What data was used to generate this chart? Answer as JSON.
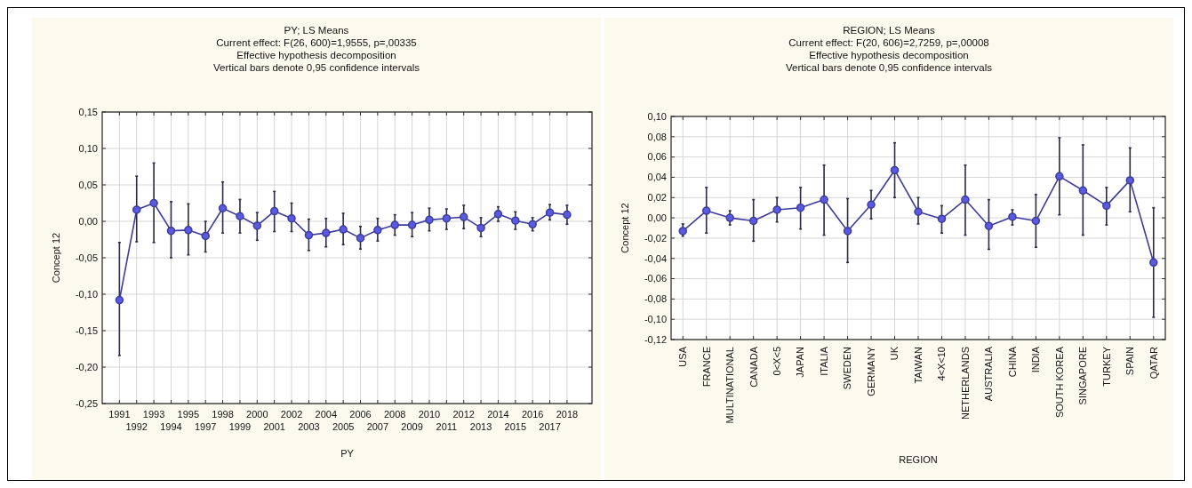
{
  "chart_data": [
    {
      "type": "line",
      "title": "PY; LS Means",
      "subtitle": "Current effect: F(26, 600)=1,9555, p=,00335",
      "annotations": [
        "Effective hypothesis decomposition",
        "Vertical bars denote 0,95 confidence intervals"
      ],
      "xlabel": "PY",
      "ylabel": "Concept 12",
      "categories": [
        "1991",
        "1992",
        "1993",
        "1994",
        "1995",
        "1997",
        "1998",
        "1999",
        "2000",
        "2001",
        "2002",
        "2003",
        "2004",
        "2005",
        "2006",
        "2007",
        "2008",
        "2009",
        "2010",
        "2011",
        "2012",
        "2013",
        "2014",
        "2015",
        "2016",
        "2017",
        "2018"
      ],
      "series": [
        {
          "color": "#3c3c9c",
          "values": [
            -0.108,
            0.016,
            0.025,
            -0.013,
            -0.012,
            -0.02,
            0.018,
            0.007,
            -0.006,
            0.014,
            0.004,
            -0.019,
            -0.016,
            -0.011,
            -0.023,
            -0.012,
            -0.005,
            -0.005,
            0.002,
            0.004,
            0.006,
            -0.009,
            0.01,
            0.001,
            -0.004,
            0.012,
            0.009
          ],
          "errors": [
            [
              -0.184,
              -0.029
            ],
            [
              -0.028,
              0.062
            ],
            [
              -0.029,
              0.08
            ],
            [
              -0.05,
              0.027
            ],
            [
              -0.046,
              0.024
            ],
            [
              -0.042,
              0.0
            ],
            [
              -0.016,
              0.054
            ],
            [
              -0.016,
              0.03
            ],
            [
              -0.026,
              0.012
            ],
            [
              -0.014,
              0.041
            ],
            [
              -0.014,
              0.025
            ],
            [
              -0.04,
              0.003
            ],
            [
              -0.035,
              0.004
            ],
            [
              -0.032,
              0.011
            ],
            [
              -0.038,
              -0.007
            ],
            [
              -0.027,
              0.004
            ],
            [
              -0.019,
              0.009
            ],
            [
              -0.021,
              0.012
            ],
            [
              -0.013,
              0.018
            ],
            [
              -0.011,
              0.017
            ],
            [
              -0.01,
              0.022
            ],
            [
              -0.021,
              0.005
            ],
            [
              0.0,
              0.02
            ],
            [
              -0.011,
              0.013
            ],
            [
              -0.013,
              0.005
            ],
            [
              0.002,
              0.023
            ],
            [
              -0.004,
              0.022
            ]
          ]
        }
      ],
      "ylim": [
        -0.25,
        0.15
      ],
      "yticks": [
        {
          "value": -0.25,
          "label": "-0,25"
        },
        {
          "value": -0.2,
          "label": "-0,20"
        },
        {
          "value": -0.15,
          "label": "-0,15"
        },
        {
          "value": -0.1,
          "label": "-0,10"
        },
        {
          "value": -0.05,
          "label": "-0,05"
        },
        {
          "value": 0,
          "label": "0,00"
        },
        {
          "value": 0.05,
          "label": "0,05"
        },
        {
          "value": 0.1,
          "label": "0,10"
        },
        {
          "value": 0.15,
          "label": "0,15"
        }
      ],
      "grid": true,
      "marker": "circle",
      "line_style": "solid"
    },
    {
      "type": "line",
      "title": "REGION; LS Means",
      "subtitle": "Current effect: F(20, 606)=2,7259, p=,00008",
      "annotations": [
        "Effective hypothesis decomposition",
        "Vertical bars denote 0,95 confidence intervals"
      ],
      "xlabel": "REGION",
      "ylabel": "Concept 12",
      "categories": [
        "USA",
        "FRANCE",
        "MULTINATIONAL",
        "CANADA",
        "0<X<5",
        "JAPAN",
        "ITALIA",
        "SWEDEN",
        "GERMANY",
        "UK",
        "TAIWAN",
        "4<X<10",
        "NETHERLANDS",
        "AUSTRALIA",
        "CHINA",
        "INDIA",
        "SOUTH KOREA",
        "SINGAPORE",
        "TURKEY",
        "SPAIN",
        "QATAR"
      ],
      "series": [
        {
          "color": "#3c3c9c",
          "values": [
            -0.013,
            0.007,
            0.0,
            -0.003,
            0.008,
            0.01,
            0.018,
            -0.013,
            0.013,
            0.047,
            0.006,
            -0.001,
            0.018,
            -0.008,
            0.001,
            -0.003,
            0.041,
            0.027,
            0.012,
            0.037,
            -0.044
          ],
          "errors": [
            [
              -0.018,
              -0.006
            ],
            [
              -0.015,
              0.03
            ],
            [
              -0.007,
              0.007
            ],
            [
              -0.023,
              0.018
            ],
            [
              -0.004,
              0.02
            ],
            [
              -0.011,
              0.03
            ],
            [
              -0.017,
              0.052
            ],
            [
              -0.044,
              0.019
            ],
            [
              -0.001,
              0.027
            ],
            [
              0.02,
              0.074
            ],
            [
              -0.006,
              0.02
            ],
            [
              -0.015,
              0.012
            ],
            [
              -0.017,
              0.052
            ],
            [
              -0.031,
              0.018
            ],
            [
              -0.007,
              0.008
            ],
            [
              -0.029,
              0.023
            ],
            [
              0.003,
              0.079
            ],
            [
              -0.017,
              0.072
            ],
            [
              -0.007,
              0.03
            ],
            [
              0.006,
              0.069
            ],
            [
              -0.098,
              0.01
            ]
          ]
        }
      ],
      "ylim": [
        -0.12,
        0.1
      ],
      "yticks": [
        {
          "value": -0.12,
          "label": "-0,12"
        },
        {
          "value": -0.1,
          "label": "-0,10"
        },
        {
          "value": -0.08,
          "label": "-0,08"
        },
        {
          "value": -0.06,
          "label": "-0,06"
        },
        {
          "value": -0.04,
          "label": "-0,04"
        },
        {
          "value": -0.02,
          "label": "-0,02"
        },
        {
          "value": 0,
          "label": "0,00"
        },
        {
          "value": 0.02,
          "label": "0,02"
        },
        {
          "value": 0.04,
          "label": "0,04"
        },
        {
          "value": 0.06,
          "label": "0,06"
        },
        {
          "value": 0.08,
          "label": "0,08"
        },
        {
          "value": 0.1,
          "label": "0,10"
        }
      ],
      "grid": true,
      "marker": "circle",
      "line_style": "solid"
    }
  ]
}
